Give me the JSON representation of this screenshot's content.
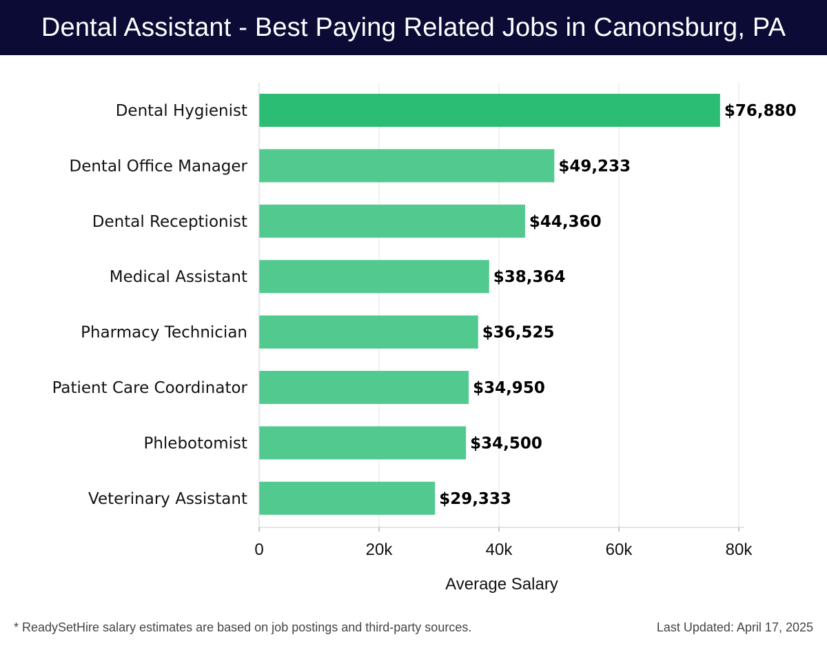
{
  "header": {
    "title": "Dental Assistant - Best Paying Related Jobs in Canonsburg, PA"
  },
  "chart_data": {
    "type": "bar",
    "orientation": "horizontal",
    "title": "Dental Assistant - Best Paying Related Jobs in Canonsburg, PA",
    "categories": [
      "Dental Hygienist",
      "Dental Office Manager",
      "Dental Receptionist",
      "Medical Assistant",
      "Pharmacy Technician",
      "Patient Care Coordinator",
      "Phlebotomist",
      "Veterinary Assistant"
    ],
    "values": [
      76880,
      49233,
      44360,
      38364,
      36525,
      34950,
      34500,
      29333
    ],
    "value_labels": [
      "$76,880",
      "$49,233",
      "$44,360",
      "$38,364",
      "$36,525",
      "$34,950",
      "$34,500",
      "$29,333"
    ],
    "xlabel": "Average Salary",
    "ylabel": "",
    "xlim": [
      0,
      80000
    ],
    "xticks": [
      0,
      20000,
      40000,
      60000,
      80000
    ],
    "xtick_labels": [
      "0",
      "20k",
      "40k",
      "60k",
      "80k"
    ],
    "grid": true,
    "colors": {
      "highlight_bar": "#2bbd74",
      "bar": "#52c98f",
      "grid": "#e3e3e3",
      "label": "#000000"
    }
  },
  "footer": {
    "note": "* ReadySetHire salary estimates are based on job postings and third-party sources.",
    "updated_label": "Last Updated:",
    "updated_date": "April 17, 2025"
  }
}
